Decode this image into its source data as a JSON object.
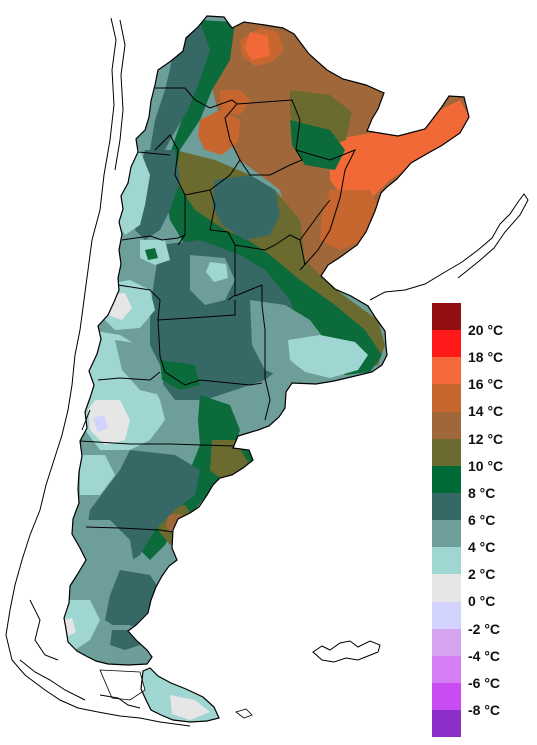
{
  "map": {
    "region": "Argentina",
    "variable": "temperature",
    "colors": {
      "m8": "#8b2fc9",
      "m6": "#c84cf2",
      "m4": "#d67ff5",
      "m2": "#d6a3f0",
      "z0": "#d3d3ff",
      "t0": "#e6e6e6",
      "t2": "#9fd6d2",
      "t4": "#6e9e9a",
      "t6": "#366966",
      "t8": "#0b6b3a",
      "t10": "#6b6b30",
      "t12": "#a0683a",
      "t14": "#c8662f",
      "t16": "#f06936",
      "t18": "#ff2a1a",
      "t20": "#930e0e",
      "outline": "#000000",
      "background": "#ffffff"
    }
  },
  "legend": {
    "items": [
      {
        "label": "20 °C",
        "color": "#930e0e"
      },
      {
        "label": "18 °C",
        "color": "#ff1a1a"
      },
      {
        "label": "16 °C",
        "color": "#f6693a"
      },
      {
        "label": "14 °C",
        "color": "#c8662f"
      },
      {
        "label": "12 °C",
        "color": "#a0683a"
      },
      {
        "label": "10 °C",
        "color": "#6b6b30"
      },
      {
        "label": "8 °C",
        "color": "#006a36"
      },
      {
        "label": "6 °C",
        "color": "#366966"
      },
      {
        "label": "4 °C",
        "color": "#6e9e9a"
      },
      {
        "label": "2 °C",
        "color": "#9fd6d2"
      },
      {
        "label": "0 °C",
        "color": "#e6e6e6"
      },
      {
        "label": "-2 °C",
        "color": "#d3d3ff"
      },
      {
        "label": "-4 °C",
        "color": "#d6a3f0"
      },
      {
        "label": "-6 °C",
        "color": "#d67ff5"
      },
      {
        "label": "-8 °C",
        "color": "#c84cf2"
      },
      {
        "label": "",
        "color": "#8b2fc9"
      }
    ]
  }
}
